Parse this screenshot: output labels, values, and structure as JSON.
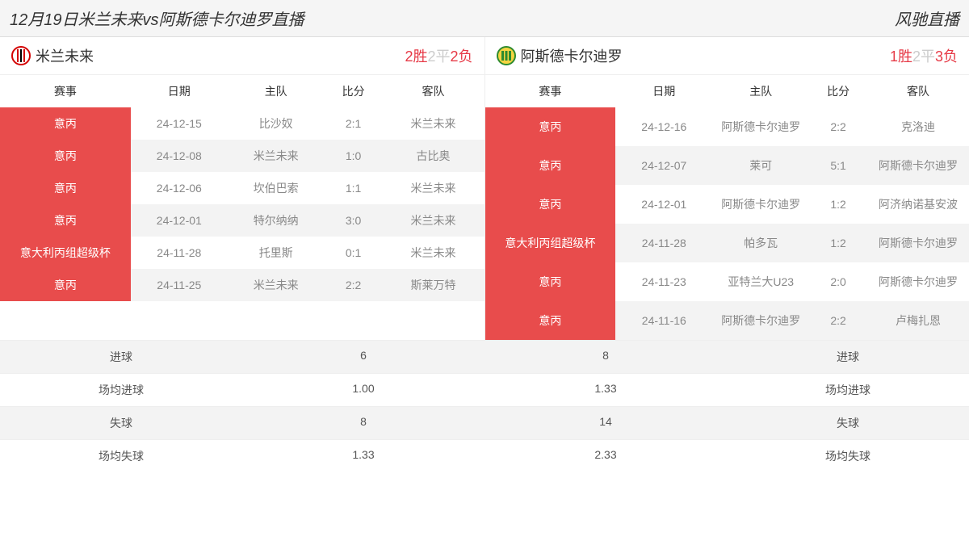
{
  "header": {
    "title": "12月19日米兰未来vs阿斯德卡尔迪罗直播",
    "brand": "风驰直播"
  },
  "columns": {
    "competition": "赛事",
    "date": "日期",
    "home": "主队",
    "score": "比分",
    "away": "客队"
  },
  "teams": {
    "left": {
      "name": "米兰未来",
      "logo_colors": {
        "bg": "#ffffff",
        "ring": "#d40000",
        "stripe": "#000000"
      },
      "record": {
        "wins": 2,
        "wins_suffix": "胜",
        "draws": 2,
        "draws_suffix": "平",
        "losses": 2,
        "losses_suffix": "负"
      },
      "matches": [
        {
          "competition": "意丙",
          "date": "24-12-15",
          "home": "比沙奴",
          "score": "2:1",
          "away": "米兰未来"
        },
        {
          "competition": "意丙",
          "date": "24-12-08",
          "home": "米兰未来",
          "score": "1:0",
          "away": "古比奥"
        },
        {
          "competition": "意丙",
          "date": "24-12-06",
          "home": "坎伯巴索",
          "score": "1:1",
          "away": "米兰未来"
        },
        {
          "competition": "意丙",
          "date": "24-12-01",
          "home": "特尔纳纳",
          "score": "3:0",
          "away": "米兰未来"
        },
        {
          "competition": "意大利丙组超级杯",
          "date": "24-11-28",
          "home": "托里斯",
          "score": "0:1",
          "away": "米兰未来"
        },
        {
          "competition": "意丙",
          "date": "24-11-25",
          "home": "米兰未来",
          "score": "2:2",
          "away": "斯莱万特"
        }
      ]
    },
    "right": {
      "name": "阿斯德卡尔迪罗",
      "logo_colors": {
        "bg": "#f5d442",
        "ring": "#2e8b2e",
        "stripe": "#2e8b2e"
      },
      "record": {
        "wins": 1,
        "wins_suffix": "胜",
        "draws": 2,
        "draws_suffix": "平",
        "losses": 3,
        "losses_suffix": "负"
      },
      "matches": [
        {
          "competition": "意丙",
          "date": "24-12-16",
          "home": "阿斯德卡尔迪罗",
          "score": "2:2",
          "away": "克洛迪"
        },
        {
          "competition": "意丙",
          "date": "24-12-07",
          "home": "莱可",
          "score": "5:1",
          "away": "阿斯德卡尔迪罗"
        },
        {
          "competition": "意丙",
          "date": "24-12-01",
          "home": "阿斯德卡尔迪罗",
          "score": "1:2",
          "away": "阿济纳诺基安波"
        },
        {
          "competition": "意大利丙组超级杯",
          "date": "24-11-28",
          "home": "帕多瓦",
          "score": "1:2",
          "away": "阿斯德卡尔迪罗"
        },
        {
          "competition": "意丙",
          "date": "24-11-23",
          "home": "亚特兰大U23",
          "score": "2:0",
          "away": "阿斯德卡尔迪罗"
        },
        {
          "competition": "意丙",
          "date": "24-11-16",
          "home": "阿斯德卡尔迪罗",
          "score": "2:2",
          "away": "卢梅扎恩"
        }
      ]
    }
  },
  "stats": {
    "rows": [
      {
        "label_left": "进球",
        "val_left": "6",
        "val_right": "8",
        "label_right": "进球"
      },
      {
        "label_left": "场均进球",
        "val_left": "1.00",
        "val_right": "1.33",
        "label_right": "场均进球"
      },
      {
        "label_left": "失球",
        "val_left": "8",
        "val_right": "14",
        "label_right": "失球"
      },
      {
        "label_left": "场均失球",
        "val_left": "1.33",
        "val_right": "2.33",
        "label_right": "场均失球"
      }
    ]
  },
  "style": {
    "highlight_color": "#e84c4c",
    "alt_row_bg": "#f3f3f3",
    "text_muted": "#888888",
    "win_color": "#e63946",
    "draw_color": "#cccccc"
  }
}
